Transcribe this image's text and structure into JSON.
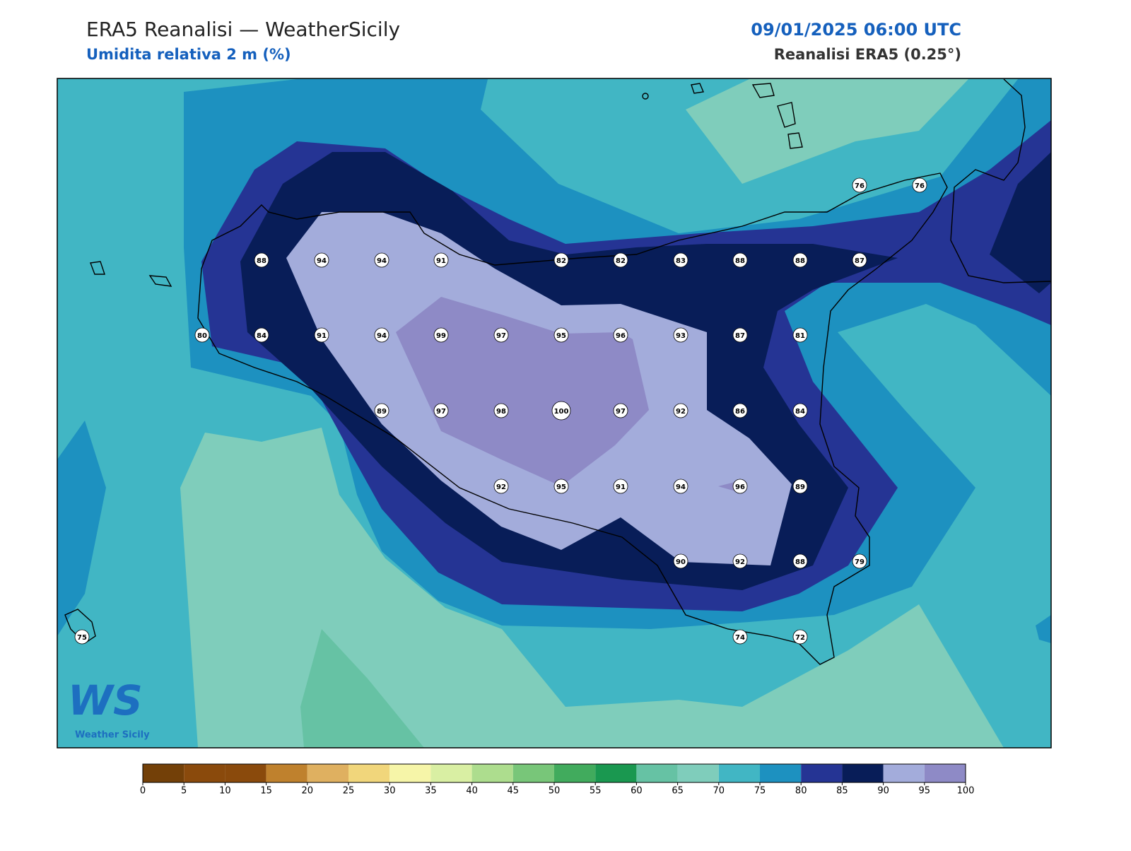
{
  "header": {
    "title": "ERA5 Reanalisi — WeatherSicily",
    "subtitle": "Umidita relativa 2 m (%)",
    "datetime": "09/01/2025 06:00 UTC",
    "source": "Reanalisi ERA5 (0.25°)"
  },
  "logo": {
    "mark": "WS",
    "text": "Weather Sicily"
  },
  "points": [
    76,
    76,
    88,
    94,
    94,
    91,
    82,
    82,
    83,
    88,
    88,
    87,
    80,
    84,
    91,
    94,
    99,
    97,
    95,
    96,
    93,
    87,
    81,
    89,
    97,
    98,
    100,
    97,
    92,
    86,
    84,
    92,
    95,
    91,
    94,
    96,
    89,
    90,
    92,
    88,
    79,
    75,
    74,
    72
  ],
  "colorbar": {
    "ticks": [
      0,
      5,
      10,
      15,
      20,
      25,
      30,
      35,
      40,
      45,
      50,
      55,
      60,
      65,
      70,
      75,
      80,
      85,
      90,
      95,
      100
    ],
    "colors": [
      "#734008",
      "#8a4a0c",
      "#8a4a0c",
      "#bf812d",
      "#dfb060",
      "#f1d67b",
      "#f6f5a8",
      "#d9efa3",
      "#addd8e",
      "#78c679",
      "#41ab5d",
      "#1a9850",
      "#66c2a4",
      "#7fcdbb",
      "#41b6c4",
      "#1d91c0",
      "#253494",
      "#081d58",
      "#a3acdb",
      "#8e8ac6"
    ]
  }
}
